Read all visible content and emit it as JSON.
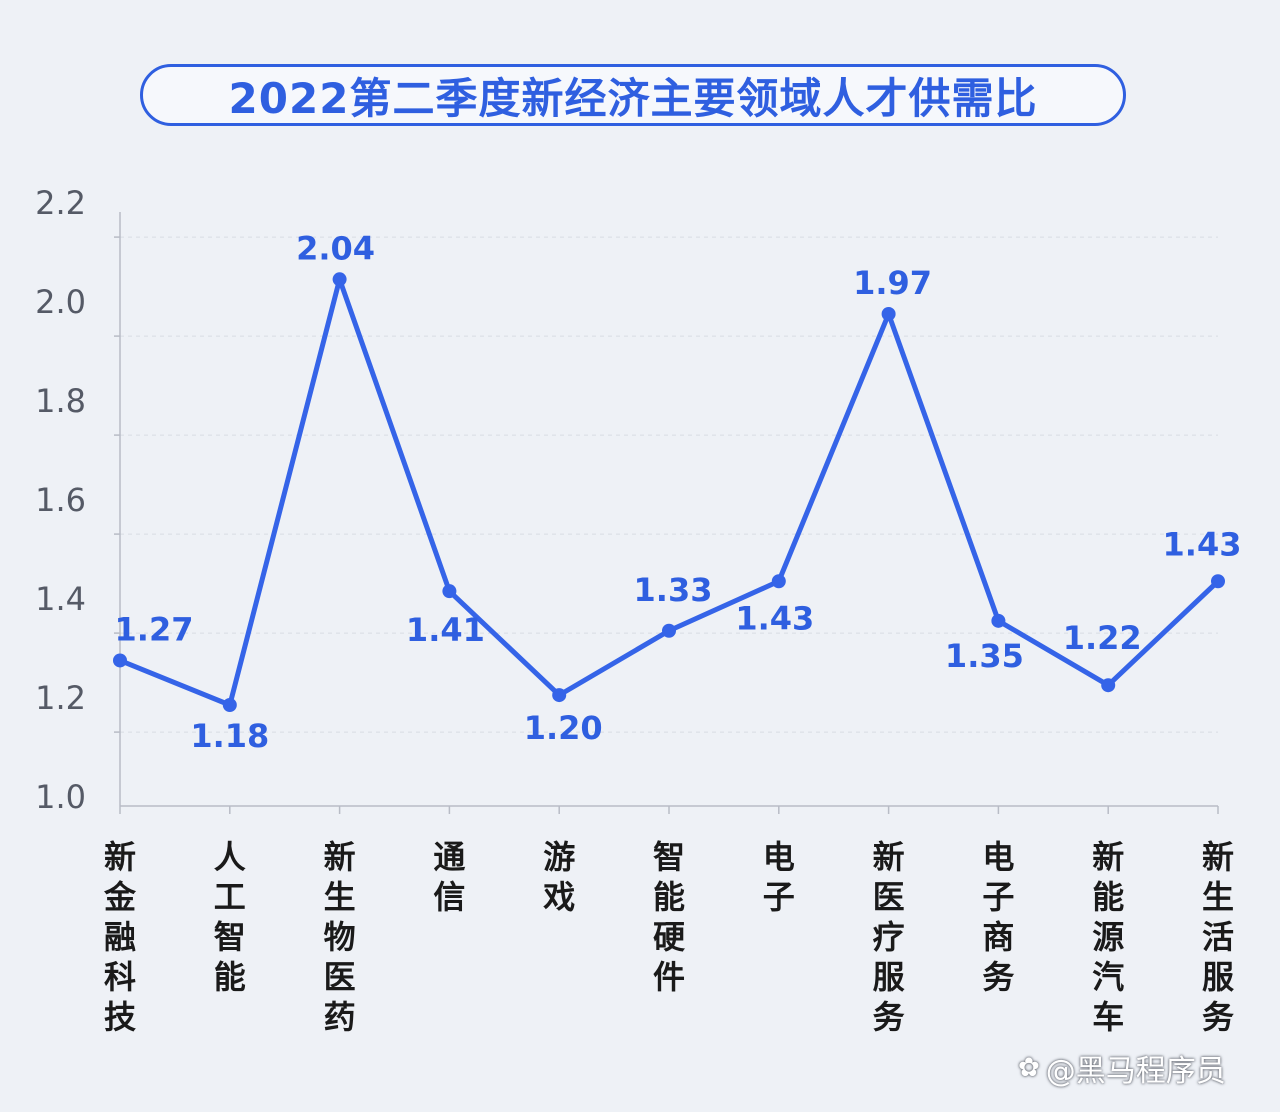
{
  "title": "2022第二季度新经济主要领域人才供需比",
  "watermark": {
    "icon": "paw-icon",
    "text": "@黑马程序员"
  },
  "colors": {
    "accent": "#2f5fe0",
    "line": "#3564e8",
    "background": "#eef1f6",
    "axis": "#b8bcc6",
    "grid": "#d8dce4",
    "tick_text": "#555a66",
    "category_text": "#1a1a1a"
  },
  "chart_data": {
    "type": "line",
    "title": "2022第二季度新经济主要领域人才供需比",
    "xlabel": "",
    "ylabel": "",
    "ylim": [
      1.0,
      2.2
    ],
    "yticks": [
      "2.2",
      "2.0",
      "1.8",
      "1.6",
      "1.4",
      "1.2",
      "1.0"
    ],
    "grid": "horizontal dashed",
    "categories": [
      "新金融科技",
      "人工智能",
      "新生物医药",
      "通信",
      "游戏",
      "智能硬件",
      "电子",
      "新医疗服务",
      "电子商务",
      "新能源汽车",
      "新生活服务"
    ],
    "values": [
      1.27,
      1.18,
      2.04,
      1.41,
      1.2,
      1.33,
      1.43,
      1.97,
      1.35,
      1.22,
      1.43
    ],
    "data_labels": [
      "1.27",
      "1.18",
      "2.04",
      "1.41",
      "1.20",
      "1.33",
      "1.43",
      "1.97",
      "1.35",
      "1.22",
      "1.43"
    ]
  }
}
